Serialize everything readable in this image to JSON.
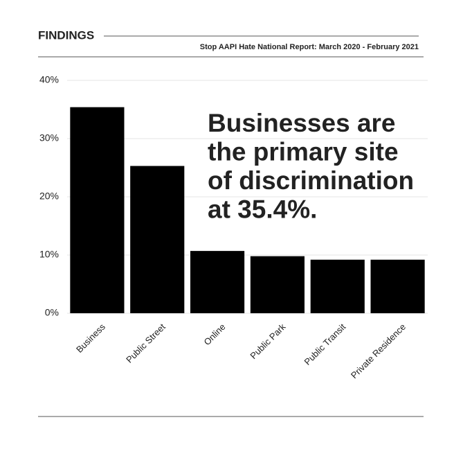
{
  "header": {
    "title": "FINDINGS",
    "subtitle": "Stop AAPI Hate National Report: March 2020 - February 2021"
  },
  "chart_data": {
    "type": "bar",
    "categories": [
      "Business",
      "Public Street",
      "Online",
      "Public Park",
      "Public Transit",
      "Private Residence"
    ],
    "values": [
      35.4,
      25.3,
      10.7,
      9.8,
      9.2,
      9.2
    ],
    "color": "#000000",
    "ylim": [
      0,
      40
    ],
    "yticks": [
      {
        "value": 0,
        "label": "0%"
      },
      {
        "value": 10,
        "label": "10%"
      },
      {
        "value": 20,
        "label": "20%"
      },
      {
        "value": 30,
        "label": "30%"
      },
      {
        "value": 40,
        "label": "40%"
      }
    ],
    "grid": true,
    "annotation": [
      "Businesses are",
      "the primary site",
      "of discrimination",
      "at 35.4%."
    ]
  }
}
